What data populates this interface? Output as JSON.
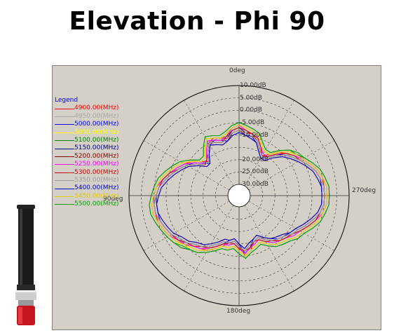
{
  "page": {
    "title": "Elevation - Phi 90"
  },
  "chart_data": {
    "type": "polar",
    "title": "Elevation - Phi 90",
    "angle_labels": [
      "0deg",
      "90deg",
      "180deg",
      "270deg"
    ],
    "radial_labels": [
      "10.00dB",
      "5.00dB",
      "0.00dB",
      "-5.00dB",
      "-10.00dB",
      "-20.00dB",
      "-25.00dB",
      "-30.00dB"
    ],
    "rlim": [
      -30,
      10
    ],
    "grid": true,
    "legend_title": "Legend",
    "legend_position": "left",
    "series": [
      {
        "name": "4900.00(MHz)",
        "color": "#ff0000",
        "gain_dB": [
          -8,
          -9,
          -11,
          -10,
          -9,
          -10,
          -13,
          -16,
          -14,
          -11,
          -9,
          -7,
          -5,
          -3,
          -1,
          0,
          0,
          0,
          0,
          -1,
          -2,
          -3,
          -5,
          -7,
          -8,
          -9,
          -11,
          -13,
          -15,
          -16,
          -14,
          -10,
          -12,
          -15,
          -16,
          -14,
          -12,
          -10,
          -9,
          -8,
          -7,
          -5,
          -3,
          -1,
          0,
          0,
          0,
          0,
          -1,
          -3,
          -5,
          -7,
          -9,
          -11,
          -14,
          -16,
          -14,
          -11,
          -9,
          -9,
          -8
        ]
      },
      {
        "name": "4950.00(MHz)",
        "color": "#a8a8a8",
        "gain_dB": [
          -7,
          -8,
          -10,
          -11,
          -10,
          -9,
          -12,
          -15,
          -15,
          -12,
          -9,
          -7,
          -5,
          -3,
          -2,
          -1,
          0,
          0,
          -1,
          -2,
          -3,
          -4,
          -5,
          -7,
          -8,
          -10,
          -12,
          -14,
          -14,
          -15,
          -13,
          -11,
          -13,
          -14,
          -15,
          -13,
          -11,
          -10,
          -9,
          -7,
          -6,
          -4,
          -2,
          -1,
          0,
          0,
          0,
          -1,
          -2,
          -4,
          -6,
          -8,
          -9,
          -12,
          -15,
          -15,
          -13,
          -10,
          -9,
          -8,
          -7
        ]
      },
      {
        "name": "5000.00(MHz)",
        "color": "#0000ff",
        "gain_dB": [
          -9,
          -10,
          -12,
          -11,
          -10,
          -11,
          -14,
          -17,
          -15,
          -12,
          -10,
          -8,
          -6,
          -4,
          -2,
          -1,
          -1,
          -1,
          -1,
          -2,
          -3,
          -4,
          -6,
          -8,
          -9,
          -10,
          -12,
          -14,
          -16,
          -17,
          -15,
          -11,
          -13,
          -16,
          -17,
          -15,
          -13,
          -11,
          -10,
          -9,
          -8,
          -6,
          -4,
          -2,
          -1,
          -1,
          -1,
          -1,
          -2,
          -4,
          -6,
          -8,
          -10,
          -12,
          -15,
          -17,
          -15,
          -12,
          -10,
          -10,
          -9
        ]
      },
      {
        "name": "5050.00(MHz)",
        "color": "#ffff00",
        "gain_dB": [
          -6,
          -7,
          -9,
          -10,
          -9,
          -8,
          -11,
          -14,
          -14,
          -11,
          -8,
          -6,
          -4,
          -2,
          -1,
          0,
          1,
          1,
          0,
          -1,
          -2,
          -3,
          -4,
          -6,
          -7,
          -9,
          -11,
          -13,
          -13,
          -14,
          -12,
          -10,
          -12,
          -13,
          -14,
          -12,
          -10,
          -9,
          -8,
          -6,
          -5,
          -3,
          -1,
          0,
          1,
          1,
          1,
          0,
          -1,
          -3,
          -5,
          -7,
          -8,
          -11,
          -14,
          -14,
          -12,
          -9,
          -8,
          -7,
          -6
        ]
      },
      {
        "name": "5100.00(MHz)",
        "color": "#008000",
        "gain_dB": [
          -5,
          -6,
          -8,
          -9,
          -8,
          -7,
          -10,
          -13,
          -13,
          -10,
          -7,
          -5,
          -3,
          -1,
          0,
          1,
          2,
          2,
          1,
          0,
          -1,
          -2,
          -3,
          -5,
          -6,
          -8,
          -10,
          -12,
          -12,
          -13,
          -11,
          -9,
          -11,
          -12,
          -13,
          -11,
          -9,
          -8,
          -7,
          -5,
          -4,
          -2,
          0,
          1,
          2,
          2,
          2,
          1,
          0,
          -2,
          -4,
          -6,
          -7,
          -10,
          -13,
          -13,
          -11,
          -8,
          -7,
          -6,
          -5
        ]
      },
      {
        "name": "5150.00(MHz)",
        "color": "#000080",
        "gain_dB": [
          -7,
          -8,
          -11,
          -12,
          -11,
          -10,
          -13,
          -16,
          -16,
          -13,
          -10,
          -8,
          -6,
          -4,
          -2,
          -1,
          0,
          0,
          -1,
          -2,
          -3,
          -5,
          -6,
          -8,
          -9,
          -11,
          -13,
          -15,
          -15,
          -16,
          -14,
          -12,
          -14,
          -15,
          -16,
          -14,
          -12,
          -11,
          -10,
          -8,
          -7,
          -5,
          -3,
          -1,
          0,
          0,
          0,
          -1,
          -2,
          -4,
          -6,
          -8,
          -10,
          -13,
          -16,
          -16,
          -14,
          -11,
          -10,
          -9,
          -7
        ]
      },
      {
        "name": "5200.00(MHz)",
        "color": "#800000",
        "gain_dB": [
          -8,
          -9,
          -12,
          -13,
          -12,
          -11,
          -14,
          -17,
          -17,
          -14,
          -11,
          -9,
          -7,
          -5,
          -3,
          -2,
          -1,
          -1,
          -2,
          -3,
          -4,
          -6,
          -7,
          -9,
          -10,
          -12,
          -14,
          -16,
          -16,
          -17,
          -15,
          -13,
          -15,
          -16,
          -17,
          -15,
          -13,
          -12,
          -11,
          -9,
          -8,
          -6,
          -4,
          -2,
          -1,
          -1,
          -1,
          -2,
          -3,
          -5,
          -7,
          -9,
          -11,
          -14,
          -17,
          -17,
          -15,
          -12,
          -11,
          -10,
          -8
        ]
      },
      {
        "name": "5250.00(MHz)",
        "color": "#ff00ff",
        "gain_dB": [
          -6,
          -7,
          -10,
          -11,
          -10,
          -9,
          -12,
          -15,
          -15,
          -12,
          -9,
          -7,
          -5,
          -3,
          -1,
          0,
          1,
          1,
          0,
          -1,
          -2,
          -4,
          -5,
          -7,
          -8,
          -10,
          -12,
          -14,
          -14,
          -15,
          -13,
          -11,
          -13,
          -14,
          -15,
          -13,
          -11,
          -10,
          -9,
          -7,
          -6,
          -4,
          -2,
          0,
          1,
          1,
          1,
          0,
          -1,
          -3,
          -5,
          -7,
          -9,
          -12,
          -15,
          -15,
          -13,
          -10,
          -9,
          -8,
          -6
        ]
      },
      {
        "name": "5300.00(MHz)",
        "color": "#cc0000",
        "gain_dB": [
          -7,
          -8,
          -10,
          -12,
          -11,
          -10,
          -13,
          -15,
          -16,
          -13,
          -10,
          -8,
          -5,
          -3,
          -2,
          -1,
          0,
          0,
          -1,
          -2,
          -3,
          -4,
          -6,
          -7,
          -9,
          -10,
          -12,
          -14,
          -15,
          -15,
          -13,
          -12,
          -13,
          -15,
          -15,
          -13,
          -12,
          -10,
          -9,
          -8,
          -6,
          -4,
          -2,
          -1,
          0,
          0,
          0,
          -1,
          -2,
          -4,
          -6,
          -7,
          -9,
          -12,
          -15,
          -16,
          -13,
          -10,
          -9,
          -8,
          -7
        ]
      },
      {
        "name": "5350.00(MHz)",
        "color": "#9e9e9e",
        "gain_dB": [
          -8,
          -9,
          -11,
          -12,
          -11,
          -10,
          -13,
          -16,
          -16,
          -13,
          -10,
          -8,
          -6,
          -4,
          -2,
          -1,
          0,
          0,
          -1,
          -2,
          -3,
          -5,
          -6,
          -8,
          -9,
          -11,
          -13,
          -15,
          -15,
          -16,
          -14,
          -12,
          -14,
          -15,
          -16,
          -14,
          -12,
          -11,
          -10,
          -8,
          -7,
          -5,
          -3,
          -1,
          0,
          0,
          0,
          -1,
          -2,
          -4,
          -6,
          -8,
          -10,
          -13,
          -16,
          -16,
          -14,
          -11,
          -10,
          -9,
          -8
        ]
      },
      {
        "name": "5400.00(MHz)",
        "color": "#0000c8",
        "gain_dB": [
          -9,
          -10,
          -12,
          -13,
          -12,
          -11,
          -14,
          -17,
          -17,
          -14,
          -11,
          -9,
          -7,
          -5,
          -3,
          -2,
          -1,
          -1,
          -2,
          -3,
          -4,
          -6,
          -7,
          -9,
          -10,
          -12,
          -14,
          -16,
          -16,
          -17,
          -15,
          -13,
          -15,
          -16,
          -17,
          -15,
          -13,
          -12,
          -11,
          -9,
          -8,
          -6,
          -4,
          -2,
          -1,
          -1,
          -1,
          -2,
          -3,
          -5,
          -7,
          -9,
          -11,
          -14,
          -17,
          -17,
          -15,
          -12,
          -11,
          -10,
          -9
        ]
      },
      {
        "name": "5450.00(MHz)",
        "color": "#e6c800",
        "gain_dB": [
          -6,
          -7,
          -9,
          -10,
          -9,
          -8,
          -11,
          -14,
          -14,
          -11,
          -8,
          -6,
          -4,
          -2,
          -1,
          0,
          1,
          1,
          0,
          -1,
          -2,
          -3,
          -5,
          -6,
          -7,
          -9,
          -11,
          -13,
          -13,
          -14,
          -12,
          -10,
          -12,
          -13,
          -14,
          -12,
          -10,
          -9,
          -8,
          -6,
          -5,
          -3,
          -1,
          0,
          1,
          1,
          1,
          0,
          -1,
          -3,
          -5,
          -6,
          -8,
          -11,
          -14,
          -14,
          -12,
          -9,
          -8,
          -7,
          -6
        ]
      },
      {
        "name": "5500.00(MHz)",
        "color": "#00a000",
        "gain_dB": [
          -5,
          -6,
          -8,
          -9,
          -8,
          -7,
          -10,
          -13,
          -13,
          -10,
          -7,
          -5,
          -3,
          -1,
          0,
          1,
          2,
          2,
          1,
          0,
          -1,
          -2,
          -4,
          -5,
          -6,
          -8,
          -10,
          -12,
          -12,
          -13,
          -11,
          -9,
          -11,
          -12,
          -13,
          -11,
          -9,
          -8,
          -7,
          -5,
          -4,
          -2,
          0,
          1,
          2,
          2,
          2,
          1,
          0,
          -2,
          -4,
          -5,
          -7,
          -10,
          -13,
          -13,
          -11,
          -8,
          -7,
          -6,
          -5
        ]
      }
    ]
  }
}
